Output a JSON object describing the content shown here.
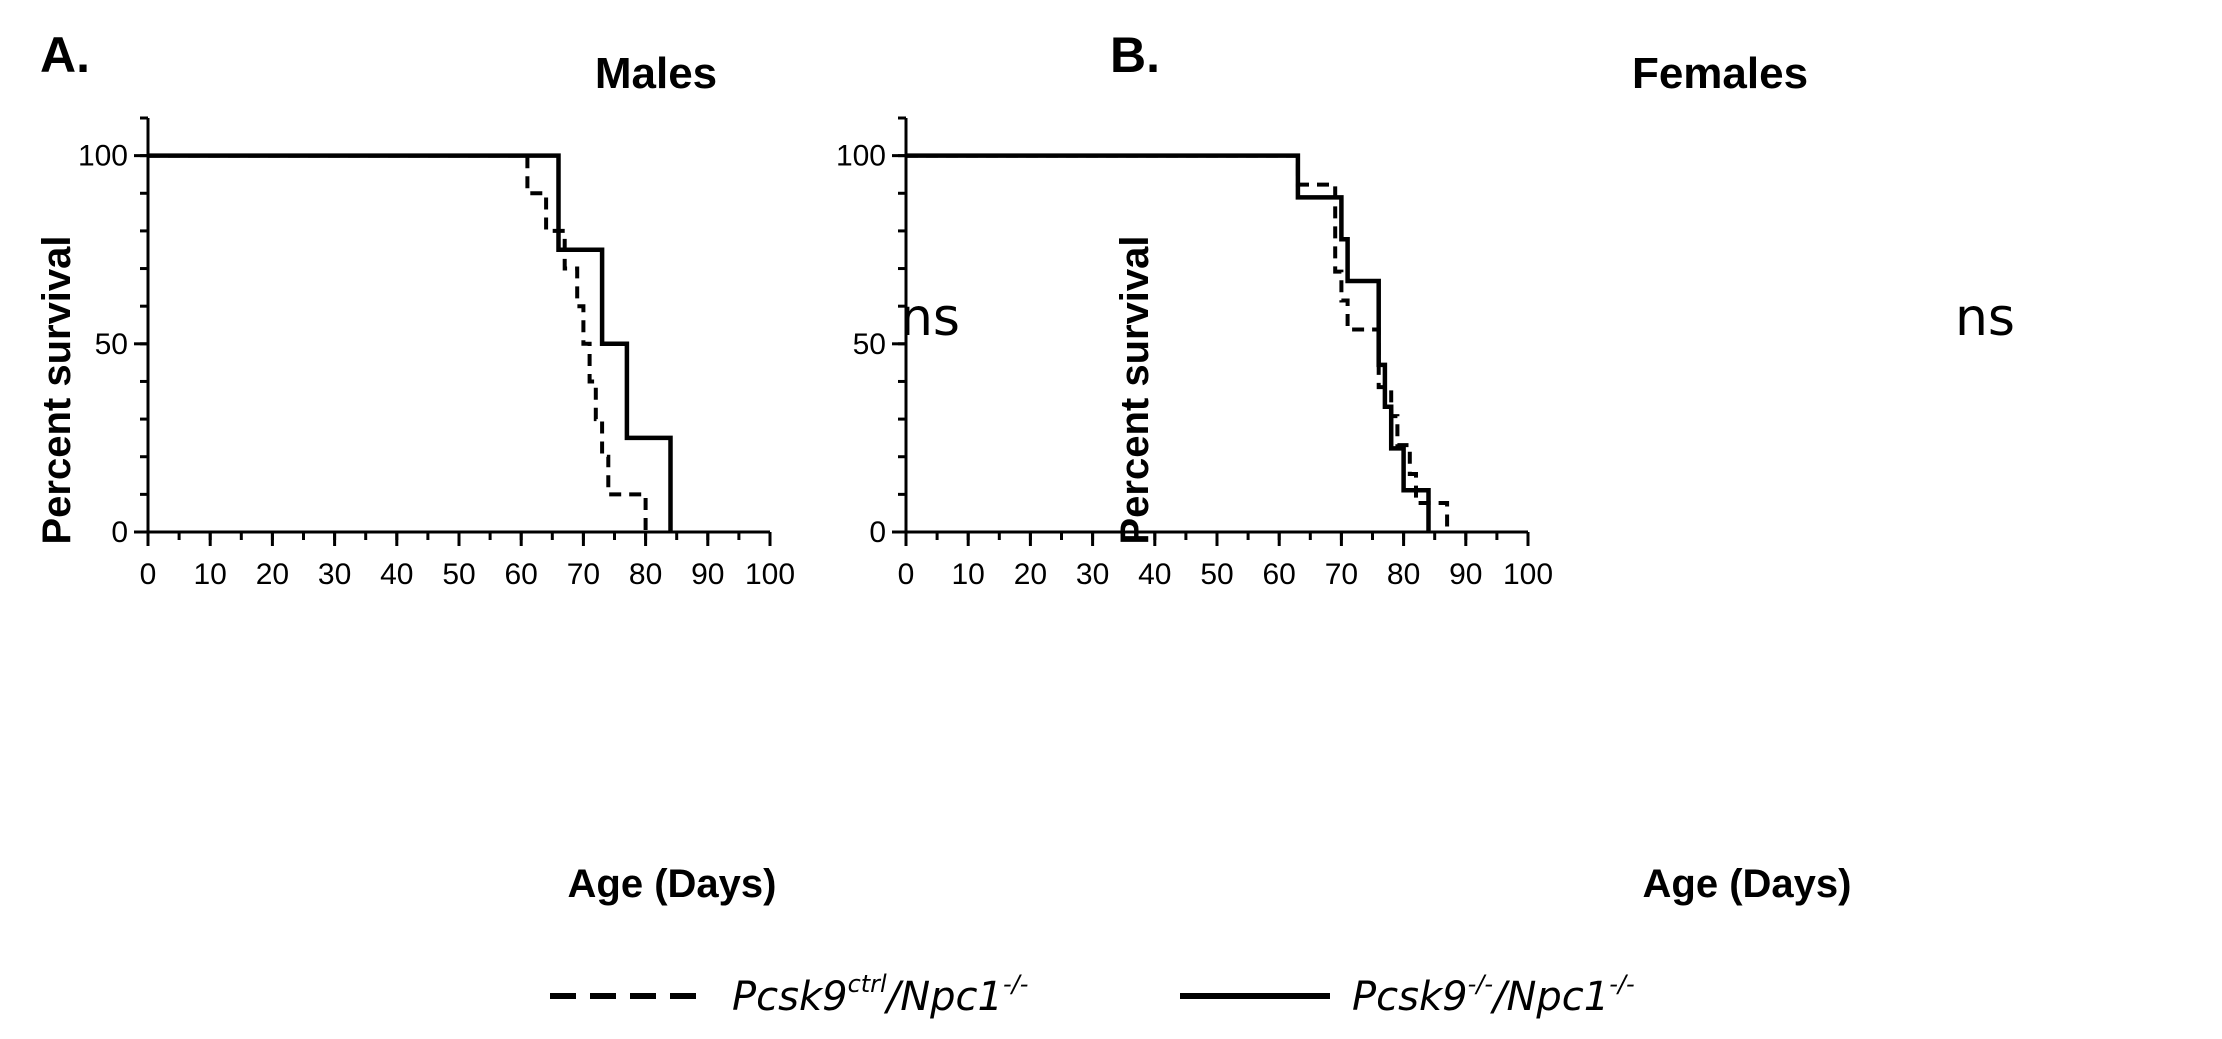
{
  "legend": {
    "items": [
      {
        "base": "Pcsk9",
        "sup1": "ctrl",
        "mid": "/Npc1",
        "sup2": "-/-",
        "style": "dashed"
      },
      {
        "base": "Pcsk9",
        "sup1": "-/-",
        "mid": "/Npc1",
        "sup2": "-/-",
        "style": "solid"
      }
    ]
  },
  "chart_data": [
    {
      "type": "line",
      "step": true,
      "panel_label": "A.",
      "title": "Males",
      "xlabel": "Age (Days)",
      "ylabel": "Percent survival",
      "xlim": [
        0,
        100
      ],
      "ylim": [
        0,
        110
      ],
      "x_ticks": [
        0,
        10,
        20,
        30,
        40,
        50,
        60,
        70,
        80,
        90,
        100
      ],
      "y_ticks": [
        0,
        50,
        100
      ],
      "annotation": {
        "text": "ns",
        "x": 82,
        "y": 82
      },
      "series": [
        {
          "name": "Pcsk9ctrl/Npc1-/-",
          "style": "dashed",
          "x": [
            0,
            61,
            61,
            64,
            64,
            67,
            67,
            69,
            69,
            70,
            70,
            71,
            71,
            72,
            72,
            73,
            73,
            74,
            74,
            75,
            75,
            77,
            77,
            80,
            80
          ],
          "y": [
            100,
            100,
            90,
            90,
            80,
            80,
            70,
            70,
            60,
            60,
            50,
            50,
            40,
            40,
            30,
            30,
            20,
            20,
            10,
            10,
            10,
            10,
            10,
            10,
            0
          ]
        },
        {
          "name": "Pcsk9-/-/Npc1-/-",
          "style": "solid",
          "x": [
            0,
            66,
            66,
            73,
            73,
            77,
            77,
            84,
            84
          ],
          "y": [
            100,
            100,
            75,
            75,
            50,
            50,
            25,
            25,
            0
          ]
        }
      ]
    },
    {
      "type": "line",
      "step": true,
      "panel_label": "B.",
      "title": "Females",
      "xlabel": "Age (Days)",
      "ylabel": "Percent survival",
      "xlim": [
        0,
        100
      ],
      "ylim": [
        0,
        110
      ],
      "x_ticks": [
        0,
        10,
        20,
        30,
        40,
        50,
        60,
        70,
        80,
        90,
        100
      ],
      "y_ticks": [
        0,
        50,
        100
      ],
      "annotation": {
        "text": "ns",
        "x": 82,
        "y": 82
      },
      "series": [
        {
          "name": "Pcsk9ctrl/Npc1-/-",
          "style": "dashed",
          "x": [
            0,
            63,
            63,
            69,
            69,
            70,
            70,
            71,
            71,
            76,
            76,
            78,
            78,
            79,
            79,
            81,
            81,
            82,
            82,
            84,
            84,
            87,
            87
          ],
          "y": [
            100,
            100,
            92.3,
            92.3,
            69.2,
            69.2,
            61.5,
            61.5,
            53.8,
            53.8,
            38.5,
            38.5,
            30.8,
            30.8,
            23.1,
            23.1,
            15.4,
            15.4,
            7.7,
            7.7,
            7.7,
            7.7,
            0
          ]
        },
        {
          "name": "Pcsk9-/-/Npc1-/-",
          "style": "solid",
          "x": [
            0,
            63,
            63,
            70,
            70,
            71,
            71,
            76,
            76,
            77,
            77,
            78,
            78,
            80,
            80,
            83,
            83,
            84,
            84
          ],
          "y": [
            100,
            100,
            88.9,
            88.9,
            77.8,
            77.8,
            66.7,
            66.7,
            44.4,
            44.4,
            33.3,
            33.3,
            22.2,
            22.2,
            11.1,
            11.1,
            11.1,
            11.1,
            0
          ]
        }
      ]
    }
  ]
}
